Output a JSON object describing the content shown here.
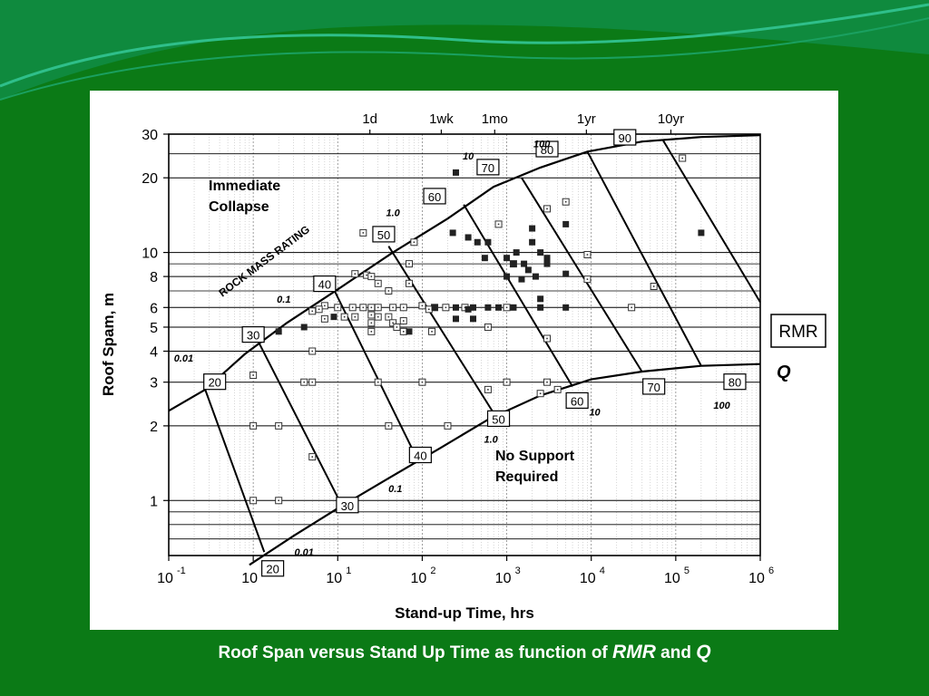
{
  "slide": {
    "caption_pre": "Roof Span versus Stand Up Time as function of",
    "caption_rmr": "RMR",
    "caption_and": "and",
    "caption_q": "Q",
    "colors": {
      "background": "#0b7a16",
      "panel": "#ffffff",
      "wave": "#1aa060"
    }
  },
  "chart_data": {
    "type": "scatter",
    "title": "",
    "xlabel": "Stand-up Time, hrs",
    "ylabel": "Roof Spam, m",
    "x_scale": "log",
    "y_scale": "log",
    "xlim": [
      0.1,
      1000000
    ],
    "ylim": [
      0.6,
      30
    ],
    "x_ticks": [
      {
        "value": 0.1,
        "base": "10",
        "exp": "-1"
      },
      {
        "value": 1,
        "base": "10",
        "exp": "0"
      },
      {
        "value": 10,
        "base": "10",
        "exp": "1"
      },
      {
        "value": 100,
        "base": "10",
        "exp": "2"
      },
      {
        "value": 1000,
        "base": "10",
        "exp": "3"
      },
      {
        "value": 10000,
        "base": "10",
        "exp": "4"
      },
      {
        "value": 100000,
        "base": "10",
        "exp": "5"
      },
      {
        "value": 1000000,
        "base": "10",
        "exp": "6"
      }
    ],
    "y_ticks": [
      {
        "value": 1,
        "label": "1"
      },
      {
        "value": 2,
        "label": "2"
      },
      {
        "value": 3,
        "label": "3"
      },
      {
        "value": 4,
        "label": "4"
      },
      {
        "value": 5,
        "label": "5"
      },
      {
        "value": 6,
        "label": "6"
      },
      {
        "value": 8,
        "label": "8"
      },
      {
        "value": 10,
        "label": "10"
      },
      {
        "value": 20,
        "label": "20"
      },
      {
        "value": 30,
        "label": "30"
      }
    ],
    "top_ticks": [
      {
        "value": 24,
        "label": "1d"
      },
      {
        "value": 168,
        "label": "1wk"
      },
      {
        "value": 720,
        "label": "1mo"
      },
      {
        "value": 8760,
        "label": "1yr"
      },
      {
        "value": 87600,
        "label": "10yr"
      }
    ],
    "grid": {
      "x": true,
      "y": true
    },
    "upper_bound": [
      [
        0.27,
        2.8
      ],
      [
        0.8,
        3.9
      ],
      [
        2.5,
        5.2
      ],
      [
        10,
        7.1
      ],
      [
        45,
        10
      ],
      [
        200,
        13.7
      ],
      [
        700,
        18.4
      ],
      [
        2500,
        22
      ],
      [
        9000,
        25.5
      ],
      [
        40000,
        28
      ],
      [
        200000,
        29.2
      ],
      [
        1000000,
        29.7
      ]
    ],
    "lower_bound": [
      [
        0.9,
        0.55
      ],
      [
        3,
        0.72
      ],
      [
        10,
        0.93
      ],
      [
        40,
        1.23
      ],
      [
        160,
        1.62
      ],
      [
        630,
        2.14
      ],
      [
        2500,
        2.65
      ],
      [
        10000,
        3.08
      ],
      [
        40000,
        3.31
      ],
      [
        200000,
        3.49
      ],
      [
        1000000,
        3.55
      ]
    ],
    "lower_left_edge": [
      [
        0.1,
        2.3
      ],
      [
        0.27,
        2.8
      ]
    ],
    "rmr_lines": [
      {
        "label": "20",
        "from": [
          0.27,
          2.8
        ],
        "to": [
          1.35,
          0.62
        ]
      },
      {
        "label": "30",
        "from": [
          1.1,
          4.5
        ],
        "to": [
          10,
          1.03
        ]
      },
      {
        "label": "40",
        "from": [
          8,
          7.7
        ],
        "to": [
          80,
          1.56
        ]
      },
      {
        "label": "50",
        "from": [
          40,
          10.6
        ],
        "to": [
          700,
          2.25
        ]
      },
      {
        "label": "60",
        "from": [
          310,
          15.6
        ],
        "to": [
          6000,
          2.88
        ]
      },
      {
        "label": "70",
        "from": [
          1500,
          20
        ],
        "to": [
          40000,
          3.3
        ]
      },
      {
        "label": "80",
        "from": [
          9000,
          25.5
        ],
        "to": [
          200000,
          3.49
        ]
      },
      {
        "label": "90",
        "from": [
          70000,
          28.5
        ],
        "to": [
          1000000,
          6.3
        ]
      }
    ],
    "rmr_labels": [
      {
        "text": "20",
        "at": [
          0.35,
          3.0
        ]
      },
      {
        "text": "30",
        "at": [
          1.0,
          4.65
        ]
      },
      {
        "text": "40",
        "at": [
          7.0,
          7.45
        ]
      },
      {
        "text": "50",
        "at": [
          35,
          11.8
        ]
      },
      {
        "text": "60",
        "at": [
          140,
          16.8
        ]
      },
      {
        "text": "70",
        "at": [
          600,
          22.0
        ]
      },
      {
        "text": "80",
        "at": [
          3000,
          26.0
        ]
      },
      {
        "text": "90",
        "at": [
          25000,
          29.0
        ]
      },
      {
        "text": "20",
        "at": [
          1.7,
          0.53
        ]
      },
      {
        "text": "30",
        "at": [
          13,
          0.955
        ]
      },
      {
        "text": "40",
        "at": [
          95,
          1.52
        ]
      },
      {
        "text": "50",
        "at": [
          800,
          2.13
        ]
      },
      {
        "text": "60",
        "at": [
          6800,
          2.52
        ]
      },
      {
        "text": "70",
        "at": [
          55000,
          2.87
        ]
      },
      {
        "text": "80",
        "at": [
          500000,
          3.0
        ]
      }
    ],
    "q_labels": [
      {
        "text": "0.01",
        "at": [
          0.15,
          3.75
        ]
      },
      {
        "text": "0.1",
        "at": [
          2.3,
          6.5
        ]
      },
      {
        "text": "1.0",
        "at": [
          45,
          14.5
        ]
      },
      {
        "text": "10",
        "at": [
          350,
          24.5
        ]
      },
      {
        "text": "100",
        "at": [
          2600,
          27.5
        ]
      },
      {
        "text": "0.01",
        "at": [
          4,
          0.62
        ]
      },
      {
        "text": "0.1",
        "at": [
          48,
          1.12
        ]
      },
      {
        "text": "1.0",
        "at": [
          650,
          1.77
        ]
      },
      {
        "text": "10",
        "at": [
          11000,
          2.28
        ]
      },
      {
        "text": "100",
        "at": [
          350000,
          2.42
        ]
      }
    ],
    "rmr_axis_label": "RMR",
    "q_axis_label": "Q",
    "rock_mass_label": "ROCK MASS RATING",
    "annotations": [
      {
        "lines": [
          "Immediate",
          "Collapse"
        ],
        "at": [
          0.5,
          18
        ]
      },
      {
        "lines": [
          "No Support",
          "Required"
        ],
        "at": [
          800,
          1.1
        ]
      }
    ],
    "series": [
      {
        "marker": "open-square",
        "points": [
          [
            20,
            12
          ],
          [
            80,
            11
          ],
          [
            70,
            9
          ],
          [
            70,
            7.5
          ],
          [
            16,
            8.2
          ],
          [
            22,
            8.1
          ],
          [
            25,
            8
          ],
          [
            30,
            7.5
          ],
          [
            40,
            7
          ],
          [
            7,
            6.1
          ],
          [
            10,
            6
          ],
          [
            15,
            6
          ],
          [
            20,
            6
          ],
          [
            25,
            6
          ],
          [
            30,
            6
          ],
          [
            45,
            6
          ],
          [
            60,
            6
          ],
          [
            140,
            6
          ],
          [
            190,
            6
          ],
          [
            320,
            6
          ],
          [
            1000,
            6
          ],
          [
            25,
            5.6
          ],
          [
            40,
            5.5
          ],
          [
            60,
            5.3
          ],
          [
            100,
            6.1
          ],
          [
            120,
            5.9
          ],
          [
            6,
            5.9
          ],
          [
            5,
            5.8
          ],
          [
            7,
            5.4
          ],
          [
            12,
            5.5
          ],
          [
            16,
            5.5
          ],
          [
            25,
            5.2
          ],
          [
            30,
            5.5
          ],
          [
            45,
            5.2
          ],
          [
            50,
            5
          ],
          [
            25,
            4.8
          ],
          [
            60,
            4.8
          ],
          [
            130,
            4.8
          ],
          [
            600,
            5
          ],
          [
            3000,
            4.5
          ],
          [
            5,
            4
          ],
          [
            4,
            3
          ],
          [
            5,
            3
          ],
          [
            30,
            3
          ],
          [
            100,
            3
          ],
          [
            1000,
            3
          ],
          [
            3000,
            3
          ],
          [
            1,
            3.2
          ],
          [
            1,
            2
          ],
          [
            2,
            2
          ],
          [
            40,
            2
          ],
          [
            200,
            2
          ],
          [
            600,
            2.8
          ],
          [
            2500,
            2.7
          ],
          [
            4000,
            2.8
          ],
          [
            5,
            1.5
          ],
          [
            1,
            1
          ],
          [
            2,
            1
          ],
          [
            800,
            13
          ],
          [
            1200,
            9
          ],
          [
            5000,
            16
          ],
          [
            9000,
            9.8
          ],
          [
            9000,
            7.8
          ],
          [
            55000,
            7.3
          ],
          [
            30000,
            6
          ],
          [
            120000,
            24
          ],
          [
            3000,
            15
          ]
        ]
      },
      {
        "marker": "filled-square",
        "points": [
          [
            250,
            21
          ],
          [
            230,
            12
          ],
          [
            350,
            11.5
          ],
          [
            450,
            11
          ],
          [
            600,
            11
          ],
          [
            550,
            9.5
          ],
          [
            1000,
            9.5
          ],
          [
            1200,
            9
          ],
          [
            1300,
            10
          ],
          [
            1600,
            9
          ],
          [
            1800,
            8.5
          ],
          [
            2200,
            8
          ],
          [
            2500,
            10
          ],
          [
            2000,
            11
          ],
          [
            2000,
            12.5
          ],
          [
            5000,
            13
          ],
          [
            1500,
            7.8
          ],
          [
            3000,
            9.5
          ],
          [
            2500,
            6.5
          ],
          [
            1000,
            8
          ],
          [
            140,
            6
          ],
          [
            250,
            6
          ],
          [
            350,
            5.9
          ],
          [
            400,
            6
          ],
          [
            600,
            6
          ],
          [
            800,
            6
          ],
          [
            1200,
            6
          ],
          [
            2500,
            6
          ],
          [
            5000,
            6
          ],
          [
            5000,
            8.2
          ],
          [
            3000,
            9
          ],
          [
            250,
            5.4
          ],
          [
            400,
            5.4
          ],
          [
            9,
            5.5
          ],
          [
            4,
            5
          ],
          [
            2,
            4.8
          ],
          [
            70,
            4.8
          ],
          [
            200000,
            12
          ]
        ]
      }
    ]
  }
}
